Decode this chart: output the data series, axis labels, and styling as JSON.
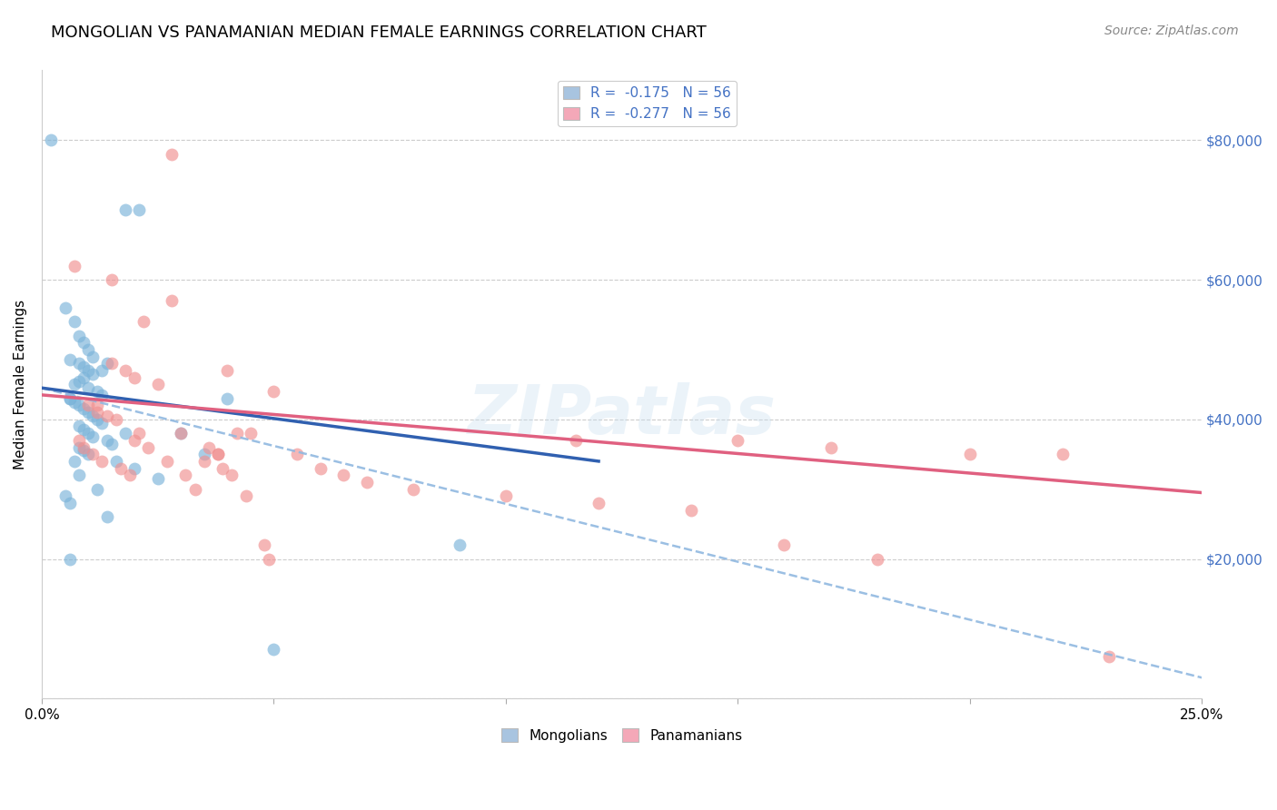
{
  "title": "MONGOLIAN VS PANAMANIAN MEDIAN FEMALE EARNINGS CORRELATION CHART",
  "source": "Source: ZipAtlas.com",
  "ylabel": "Median Female Earnings",
  "xlim": [
    0.0,
    0.25
  ],
  "ylim": [
    0,
    90000
  ],
  "yticks": [
    0,
    20000,
    40000,
    60000,
    80000
  ],
  "xticks": [
    0.0,
    0.05,
    0.1,
    0.15,
    0.2,
    0.25
  ],
  "xtick_labels": [
    "0.0%",
    "",
    "",
    "",
    "",
    "25.0%"
  ],
  "mongolian_color": "#7ab3d9",
  "panamanian_color": "#f09090",
  "mongolian_alpha": 0.65,
  "panamanian_alpha": 0.65,
  "marker_size": 100,
  "trendline_mongolian_solid_color": "#3060b0",
  "trendline_mongolian_dashed_color": "#90b8e0",
  "trendline_panamanian_color": "#e06080",
  "watermark": "ZIPatlas",
  "background_color": "#ffffff",
  "grid_color": "#cccccc",
  "right_yaxis_color": "#4472c4",
  "title_fontsize": 13,
  "ylabel_fontsize": 11,
  "source_fontsize": 10,
  "mongo_trendline_x0": 0.0,
  "mongo_trendline_y0": 44500,
  "mongo_trendline_x1": 0.12,
  "mongo_trendline_y1": 34000,
  "mongo_trendline_dashed_x0": 0.0,
  "mongo_trendline_dashed_y0": 44500,
  "mongo_trendline_dashed_x1": 0.25,
  "mongo_trendline_dashed_y1": 3000,
  "pana_trendline_x0": 0.0,
  "pana_trendline_y0": 43500,
  "pana_trendline_x1": 0.25,
  "pana_trendline_y1": 29500,
  "mongo_x": [
    0.002,
    0.018,
    0.021,
    0.005,
    0.007,
    0.008,
    0.009,
    0.01,
    0.011,
    0.006,
    0.008,
    0.009,
    0.01,
    0.011,
    0.009,
    0.008,
    0.007,
    0.01,
    0.012,
    0.013,
    0.014,
    0.006,
    0.007,
    0.008,
    0.009,
    0.01,
    0.011,
    0.012,
    0.013,
    0.008,
    0.009,
    0.01,
    0.011,
    0.014,
    0.015,
    0.008,
    0.009,
    0.01,
    0.016,
    0.013,
    0.018,
    0.005,
    0.006,
    0.007,
    0.014,
    0.006,
    0.05,
    0.025,
    0.03,
    0.035,
    0.04,
    0.012,
    0.02,
    0.008,
    0.006,
    0.09
  ],
  "mongo_y": [
    80000,
    70000,
    70000,
    56000,
    54000,
    52000,
    51000,
    50000,
    49000,
    48500,
    48000,
    47500,
    47000,
    46500,
    46000,
    45500,
    45000,
    44500,
    44000,
    43500,
    48000,
    43000,
    42500,
    42000,
    41500,
    41000,
    40500,
    40000,
    39500,
    39000,
    38500,
    38000,
    37500,
    37000,
    36500,
    36000,
    35500,
    35000,
    34000,
    47000,
    38000,
    29000,
    28000,
    34000,
    26000,
    20000,
    7000,
    31500,
    38000,
    35000,
    43000,
    30000,
    33000,
    32000,
    43000,
    22000
  ],
  "pana_x": [
    0.028,
    0.007,
    0.015,
    0.028,
    0.022,
    0.015,
    0.012,
    0.01,
    0.012,
    0.014,
    0.016,
    0.018,
    0.02,
    0.025,
    0.03,
    0.009,
    0.011,
    0.013,
    0.017,
    0.019,
    0.021,
    0.023,
    0.027,
    0.031,
    0.033,
    0.035,
    0.036,
    0.038,
    0.039,
    0.041,
    0.044,
    0.045,
    0.048,
    0.049,
    0.05,
    0.055,
    0.06,
    0.065,
    0.07,
    0.08,
    0.1,
    0.12,
    0.14,
    0.16,
    0.18,
    0.2,
    0.22,
    0.23,
    0.115,
    0.15,
    0.17,
    0.04,
    0.042,
    0.038,
    0.02,
    0.008
  ],
  "pana_y": [
    78000,
    62000,
    60000,
    57000,
    54000,
    48000,
    42000,
    42000,
    41000,
    40500,
    40000,
    47000,
    46000,
    45000,
    38000,
    36000,
    35000,
    34000,
    33000,
    32000,
    38000,
    36000,
    34000,
    32000,
    30000,
    34000,
    36000,
    35000,
    33000,
    32000,
    29000,
    38000,
    22000,
    20000,
    44000,
    35000,
    33000,
    32000,
    31000,
    30000,
    29000,
    28000,
    27000,
    22000,
    20000,
    35000,
    35000,
    6000,
    37000,
    37000,
    36000,
    47000,
    38000,
    35000,
    37000,
    37000
  ]
}
